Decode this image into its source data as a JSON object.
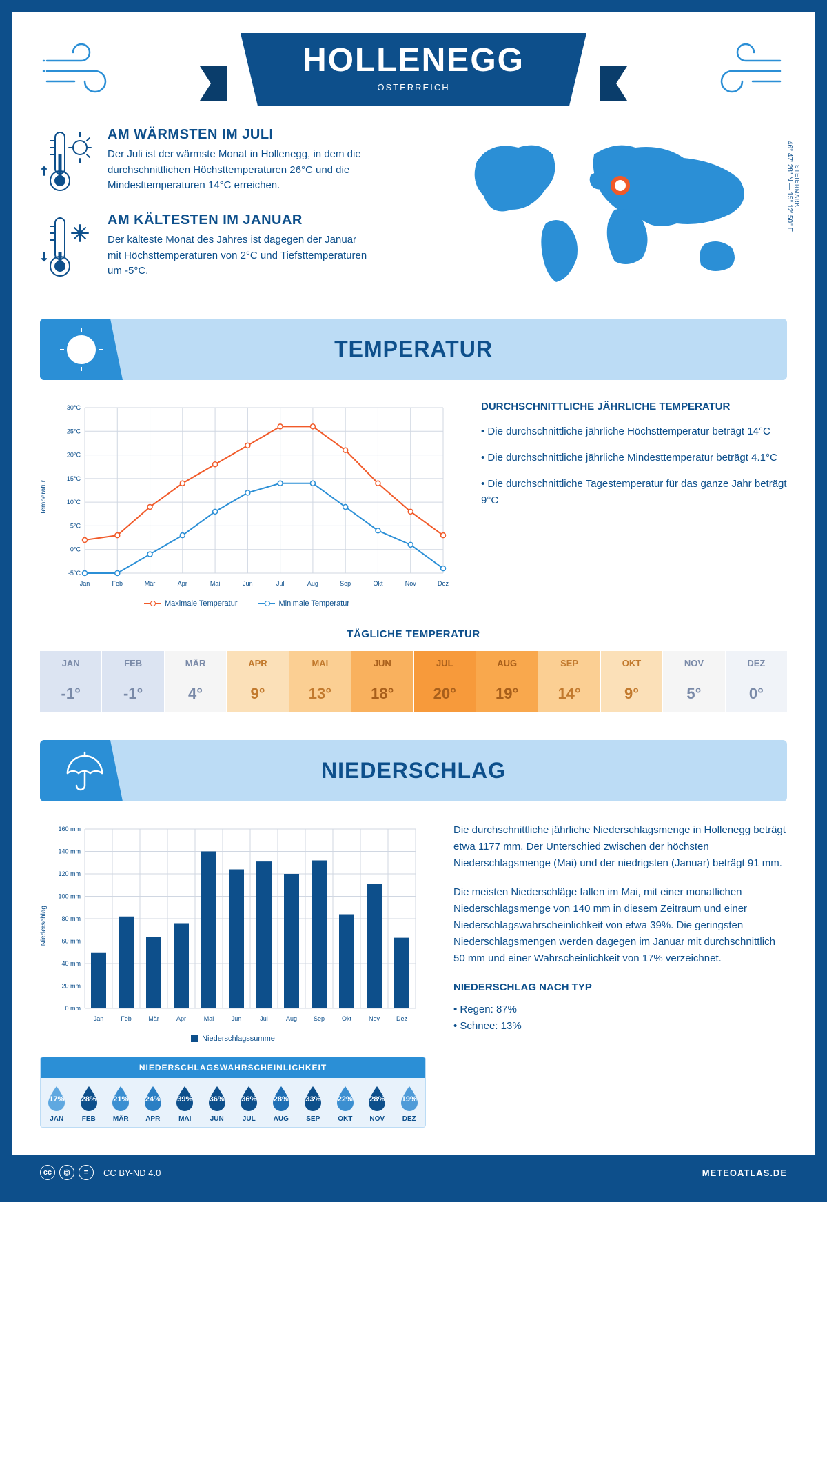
{
  "header": {
    "title": "HOLLENEGG",
    "subtitle": "ÖSTERREICH"
  },
  "coords": {
    "region": "STEIERMARK",
    "lat": "46° 47' 28'' N",
    "lon": "15° 12' 50'' E"
  },
  "fact_warm": {
    "title": "AM WÄRMSTEN IM JULI",
    "text": "Der Juli ist der wärmste Monat in Hollenegg, in dem die durchschnittlichen Höchsttemperaturen 26°C und die Mindesttemperaturen 14°C erreichen."
  },
  "fact_cold": {
    "title": "AM KÄLTESTEN IM JANUAR",
    "text": "Der kälteste Monat des Jahres ist dagegen der Januar mit Höchsttemperaturen von 2°C und Tiefsttemperaturen um -5°C."
  },
  "section_temp": "TEMPERATUR",
  "section_precip": "NIEDERSCHLAG",
  "temp_chart": {
    "type": "line",
    "ylabel": "Temperatur",
    "ylim": [
      -5,
      30
    ],
    "ytick_step": 5,
    "months": [
      "Jan",
      "Feb",
      "Mär",
      "Apr",
      "Mai",
      "Jun",
      "Jul",
      "Aug",
      "Sep",
      "Okt",
      "Nov",
      "Dez"
    ],
    "series_max": {
      "label": "Maximale Temperatur",
      "color": "#f15a29",
      "values": [
        2,
        3,
        9,
        14,
        18,
        22,
        26,
        26,
        21,
        14,
        8,
        3
      ]
    },
    "series_min": {
      "label": "Minimale Temperatur",
      "color": "#2b8fd6",
      "values": [
        -5,
        -5,
        -1,
        3,
        8,
        12,
        14,
        14,
        9,
        4,
        1,
        -4
      ]
    },
    "grid_color": "#d0d7e2",
    "marker": "circle-open",
    "line_width": 2
  },
  "temp_text": {
    "title": "DURCHSCHNITTLICHE JÄHRLICHE TEMPERATUR",
    "b1": "• Die durchschnittliche jährliche Höchsttemperatur beträgt 14°C",
    "b2": "• Die durchschnittliche jährliche Mindesttemperatur beträgt 4.1°C",
    "b3": "• Die durchschnittliche Tagestemperatur für das ganze Jahr beträgt 9°C"
  },
  "daily": {
    "title": "TÄGLICHE TEMPERATUR",
    "months": [
      "JAN",
      "FEB",
      "MÄR",
      "APR",
      "MAI",
      "JUN",
      "JUL",
      "AUG",
      "SEP",
      "OKT",
      "NOV",
      "DEZ"
    ],
    "values": [
      "-1°",
      "-1°",
      "4°",
      "9°",
      "13°",
      "18°",
      "20°",
      "19°",
      "14°",
      "9°",
      "5°",
      "0°"
    ],
    "colors": [
      "#dce4f2",
      "#dce4f2",
      "#f5f5f5",
      "#fbe0b8",
      "#fbcf93",
      "#f9b15e",
      "#f79a3b",
      "#f9a84d",
      "#fbcf93",
      "#fbe0b8",
      "#f5f5f5",
      "#f0f3f8"
    ],
    "text_colors": [
      "#7a8aa8",
      "#7a8aa8",
      "#7a8aa8",
      "#c27a2e",
      "#c27a2e",
      "#a85f1b",
      "#a85f1b",
      "#a85f1b",
      "#c27a2e",
      "#c27a2e",
      "#7a8aa8",
      "#7a8aa8"
    ]
  },
  "precip_chart": {
    "type": "bar",
    "ylabel": "Niederschlag",
    "legend": "Niederschlagssumme",
    "ylim": [
      0,
      160
    ],
    "ytick_step": 20,
    "months": [
      "Jan",
      "Feb",
      "Mär",
      "Apr",
      "Mai",
      "Jun",
      "Jul",
      "Aug",
      "Sep",
      "Okt",
      "Nov",
      "Dez"
    ],
    "values": [
      50,
      82,
      64,
      76,
      140,
      124,
      131,
      120,
      132,
      84,
      111,
      63
    ],
    "bar_color": "#0d4f8b",
    "grid_color": "#d0d7e2",
    "bar_width": 0.55
  },
  "precip_text": {
    "p1": "Die durchschnittliche jährliche Niederschlagsmenge in Hollenegg beträgt etwa 1177 mm. Der Unterschied zwischen der höchsten Niederschlagsmenge (Mai) und der niedrigsten (Januar) beträgt 91 mm.",
    "p2": "Die meisten Niederschläge fallen im Mai, mit einer monatlichen Niederschlagsmenge von 140 mm in diesem Zeitraum und einer Niederschlagswahrscheinlichkeit von etwa 39%. Die geringsten Niederschlagsmengen werden dagegen im Januar mit durchschnittlich 50 mm und einer Wahrscheinlichkeit von 17% verzeichnet.",
    "type_title": "NIEDERSCHLAG NACH TYP",
    "type_1": "• Regen: 87%",
    "type_2": "• Schnee: 13%"
  },
  "prob": {
    "title": "NIEDERSCHLAGSWAHRSCHEINLICHKEIT",
    "months": [
      "JAN",
      "FEB",
      "MÄR",
      "APR",
      "MAI",
      "JUN",
      "JUL",
      "AUG",
      "SEP",
      "OKT",
      "NOV",
      "DEZ"
    ],
    "pct": [
      "17%",
      "28%",
      "21%",
      "24%",
      "39%",
      "36%",
      "36%",
      "28%",
      "33%",
      "22%",
      "28%",
      "19%"
    ],
    "colors": [
      "#5fa8e0",
      "#0d4f8b",
      "#3b8fd1",
      "#2b7fc4",
      "#0d4f8b",
      "#0d4f8b",
      "#0d4f8b",
      "#1e6fb5",
      "#0d4f8b",
      "#3b8fd1",
      "#0d4f8b",
      "#4f9bd8"
    ]
  },
  "footer": {
    "license": "CC BY-ND 4.0",
    "brand": "METEOATLAS.DE"
  }
}
